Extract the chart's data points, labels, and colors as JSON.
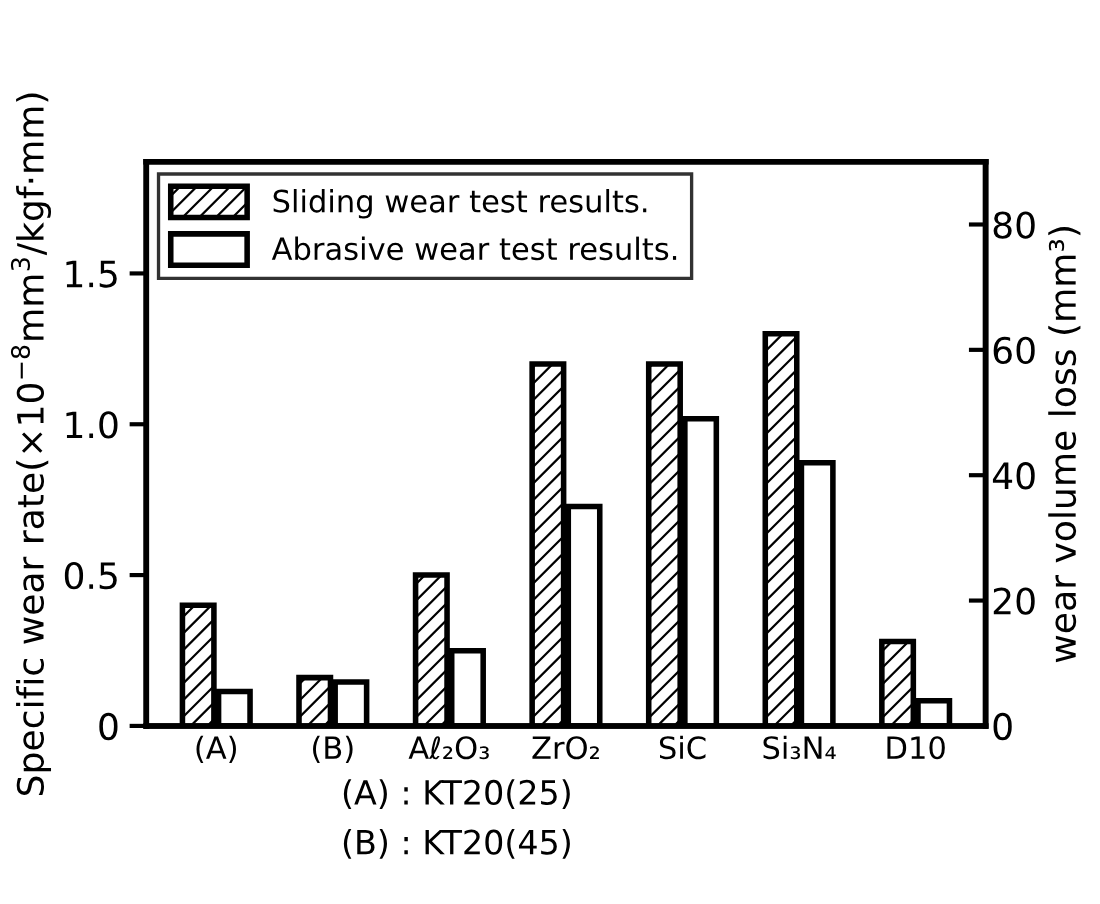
{
  "chart_data": {
    "type": "bar",
    "ylabel": "Specific wear rate(×10$^{−8}$mm$^{3}$/kgf·mm)",
    "y2label": "wear volume loss (mm³)",
    "categories": [
      "(A)",
      "(B)",
      "Aℓ₂O₃",
      "ZrO₂",
      "SiC",
      "Si₃N₄",
      "D10"
    ],
    "series": [
      {
        "name": "Sliding wear test results.",
        "color": "#000000",
        "values": [
          0.4,
          0.16,
          0.5,
          1.2,
          1.2,
          1.3,
          0.28
        ]
      },
      {
        "name": "Abrasive wear test results.",
        "color": "#ffffff",
        "axis": "y2",
        "values": [
          5.5,
          7,
          12,
          35,
          49,
          42,
          4
        ]
      }
    ],
    "ylim": [
      0,
      1.87
    ],
    "yticks": [
      0,
      0.5,
      {
        "value": 1,
        "label": "1.0"
      },
      1.5
    ],
    "y2lim": [
      0,
      90
    ],
    "y2ticks": [
      0,
      20,
      40,
      60,
      80
    ],
    "legend": "top left",
    "grid": false,
    "annotations": [
      "(A) : KT20(25)",
      "(B) : KT20(45)"
    ]
  }
}
